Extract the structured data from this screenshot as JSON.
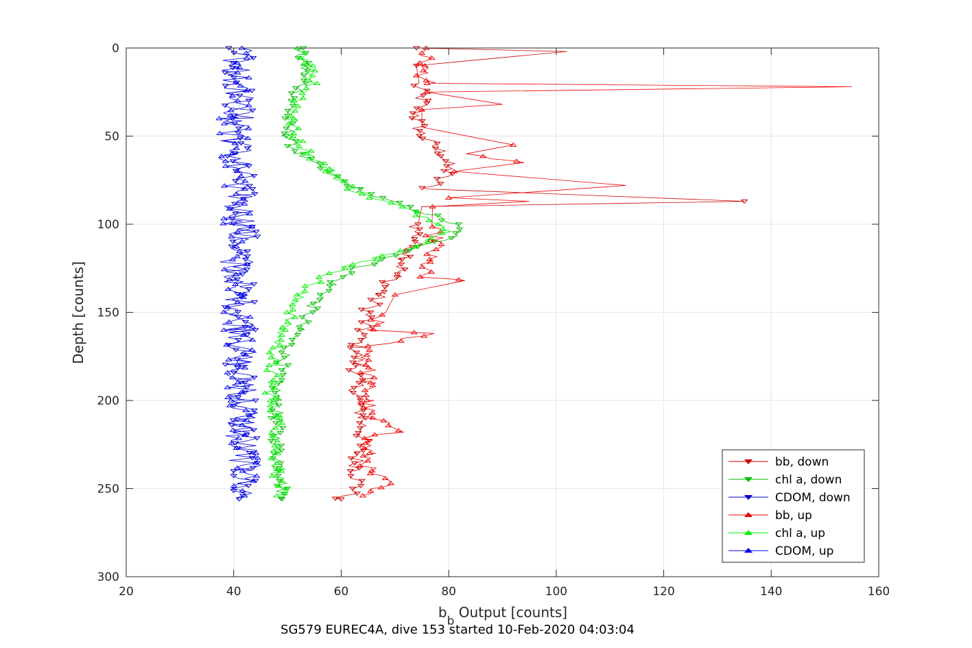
{
  "chart_data": {
    "type": "line",
    "title": "SG579 EUREC4A, dive 153 started 10-Feb-2020 04:03:04",
    "xlabel_main": "b",
    "xlabel_sub": "b",
    "xlabel_rest": " Output [counts]",
    "ylabel": "Depth [counts]",
    "xlim": [
      20,
      160
    ],
    "ylim": [
      0,
      300
    ],
    "y_reversed": true,
    "grid": true,
    "legend_position": "bottom-right",
    "xticks": [
      20,
      40,
      60,
      80,
      100,
      120,
      140,
      160
    ],
    "yticks": [
      0,
      50,
      100,
      150,
      200,
      250,
      300
    ],
    "xtick_labels": [
      "20",
      "40",
      "60",
      "80",
      "100",
      "120",
      "140",
      "160"
    ],
    "ytick_labels": [
      "0",
      "50",
      "100",
      "150",
      "200",
      "250",
      "300"
    ],
    "series": [
      {
        "name": "bb, down",
        "color": "#cc0000",
        "marker": "triangle-down",
        "profile": [
          [
            0,
            74
          ],
          [
            2,
            102
          ],
          [
            10,
            74
          ],
          [
            20,
            74
          ],
          [
            30,
            75
          ],
          [
            40,
            74
          ],
          [
            50,
            75
          ],
          [
            60,
            79
          ],
          [
            70,
            80
          ],
          [
            78,
            77
          ],
          [
            80,
            76
          ],
          [
            87,
            135
          ],
          [
            90,
            75
          ],
          [
            100,
            74
          ],
          [
            110,
            74
          ],
          [
            120,
            72
          ],
          [
            130,
            70
          ],
          [
            140,
            67
          ],
          [
            150,
            65
          ],
          [
            160,
            64
          ],
          [
            170,
            63
          ],
          [
            180,
            63
          ],
          [
            190,
            63
          ],
          [
            200,
            63
          ],
          [
            210,
            64
          ],
          [
            220,
            64
          ],
          [
            230,
            63
          ],
          [
            240,
            63
          ],
          [
            250,
            63
          ],
          [
            256,
            60
          ]
        ],
        "values_x": [
          74,
          102,
          74,
          74,
          75,
          74,
          75,
          79,
          80,
          77,
          76,
          135,
          75,
          74,
          74,
          72,
          70,
          67,
          65,
          64,
          63,
          63,
          63,
          63,
          64,
          64,
          63,
          63,
          63,
          60
        ],
        "values_y": [
          0,
          2,
          10,
          20,
          30,
          40,
          50,
          60,
          70,
          78,
          80,
          87,
          90,
          100,
          110,
          120,
          130,
          140,
          150,
          160,
          170,
          180,
          190,
          200,
          210,
          220,
          230,
          240,
          250,
          256
        ]
      },
      {
        "name": "chl a, down",
        "color": "#00bb00",
        "marker": "triangle-down",
        "profile": [
          [
            0,
            52
          ],
          [
            10,
            53
          ],
          [
            20,
            53
          ],
          [
            30,
            51
          ],
          [
            40,
            50
          ],
          [
            50,
            50
          ],
          [
            60,
            52
          ],
          [
            70,
            57
          ],
          [
            80,
            63
          ],
          [
            85,
            67
          ],
          [
            90,
            72
          ],
          [
            95,
            77
          ],
          [
            100,
            81
          ],
          [
            105,
            82
          ],
          [
            110,
            78
          ],
          [
            115,
            73
          ],
          [
            120,
            68
          ],
          [
            125,
            63
          ],
          [
            130,
            60
          ],
          [
            135,
            58
          ],
          [
            140,
            57
          ],
          [
            145,
            55
          ],
          [
            150,
            54
          ],
          [
            160,
            52
          ],
          [
            170,
            50
          ],
          [
            180,
            49
          ],
          [
            190,
            48
          ],
          [
            200,
            48
          ],
          [
            210,
            48
          ],
          [
            220,
            48
          ],
          [
            230,
            48
          ],
          [
            240,
            49
          ],
          [
            250,
            49
          ],
          [
            256,
            49
          ]
        ],
        "values_x": [
          52,
          53,
          53,
          51,
          50,
          50,
          52,
          57,
          63,
          67,
          72,
          77,
          81,
          82,
          78,
          73,
          68,
          63,
          60,
          58,
          57,
          55,
          54,
          52,
          50,
          49,
          48,
          48,
          48,
          48,
          48,
          49,
          49,
          49
        ],
        "values_y": [
          0,
          10,
          20,
          30,
          40,
          50,
          60,
          70,
          80,
          85,
          90,
          95,
          100,
          105,
          110,
          115,
          120,
          125,
          130,
          135,
          140,
          145,
          150,
          160,
          170,
          180,
          190,
          200,
          210,
          220,
          230,
          240,
          250,
          256
        ]
      },
      {
        "name": "CDOM, down",
        "color": "#0000cc",
        "marker": "triangle-down",
        "profile": [
          [
            0,
            42
          ],
          [
            20,
            41
          ],
          [
            40,
            41
          ],
          [
            60,
            41
          ],
          [
            80,
            41
          ],
          [
            100,
            42
          ],
          [
            120,
            41
          ],
          [
            140,
            41
          ],
          [
            160,
            42
          ],
          [
            180,
            41
          ],
          [
            200,
            42
          ],
          [
            220,
            42
          ],
          [
            240,
            42
          ],
          [
            256,
            41
          ]
        ],
        "values_x": [
          42,
          41,
          41,
          41,
          41,
          42,
          41,
          41,
          42,
          41,
          42,
          42,
          42,
          41
        ],
        "values_y": [
          0,
          20,
          40,
          60,
          80,
          100,
          120,
          140,
          160,
          180,
          200,
          220,
          240,
          256
        ]
      },
      {
        "name": "bb, up",
        "color": "#ee0000",
        "marker": "triangle-up",
        "profile": [
          [
            0,
            76
          ],
          [
            10,
            75
          ],
          [
            20,
            76
          ],
          [
            22,
            155
          ],
          [
            25,
            76
          ],
          [
            32,
            90
          ],
          [
            35,
            75
          ],
          [
            45,
            75
          ],
          [
            55,
            92
          ],
          [
            60,
            82
          ],
          [
            65,
            94
          ],
          [
            70,
            81
          ],
          [
            78,
            113
          ],
          [
            85,
            80
          ],
          [
            87,
            95
          ],
          [
            90,
            77
          ],
          [
            100,
            77
          ],
          [
            105,
            77
          ],
          [
            110,
            78
          ],
          [
            120,
            76
          ],
          [
            130,
            75
          ],
          [
            132,
            83
          ],
          [
            140,
            70
          ],
          [
            150,
            67
          ],
          [
            160,
            66
          ],
          [
            162,
            76
          ],
          [
            170,
            65
          ],
          [
            180,
            65
          ],
          [
            190,
            65
          ],
          [
            200,
            65
          ],
          [
            210,
            65
          ],
          [
            218,
            73
          ],
          [
            220,
            65
          ],
          [
            230,
            65
          ],
          [
            240,
            65
          ],
          [
            248,
            69
          ],
          [
            250,
            65
          ],
          [
            254,
            64
          ]
        ],
        "values_x": [
          76,
          75,
          76,
          155,
          76,
          90,
          75,
          75,
          92,
          82,
          94,
          81,
          113,
          80,
          95,
          77,
          77,
          77,
          78,
          76,
          75,
          83,
          70,
          67,
          66,
          76,
          65,
          65,
          65,
          65,
          65,
          73,
          65,
          65,
          65,
          69,
          65,
          64
        ],
        "values_y": [
          0,
          10,
          20,
          22,
          25,
          32,
          35,
          45,
          55,
          60,
          65,
          70,
          78,
          85,
          87,
          90,
          100,
          105,
          110,
          120,
          130,
          132,
          140,
          150,
          160,
          162,
          170,
          180,
          190,
          200,
          210,
          218,
          220,
          230,
          240,
          248,
          250,
          254
        ]
      },
      {
        "name": "chl a, up",
        "color": "#00ee00",
        "marker": "triangle-up",
        "profile": [
          [
            0,
            53
          ],
          [
            10,
            54
          ],
          [
            20,
            55
          ],
          [
            30,
            52
          ],
          [
            40,
            51
          ],
          [
            50,
            51
          ],
          [
            60,
            54
          ],
          [
            70,
            58
          ],
          [
            80,
            62
          ],
          [
            85,
            66
          ],
          [
            90,
            71
          ],
          [
            95,
            75
          ],
          [
            100,
            79
          ],
          [
            105,
            80
          ],
          [
            110,
            76
          ],
          [
            115,
            71
          ],
          [
            120,
            66
          ],
          [
            125,
            60
          ],
          [
            130,
            57
          ],
          [
            135,
            54
          ],
          [
            140,
            52
          ],
          [
            150,
            51
          ],
          [
            160,
            49
          ],
          [
            170,
            48
          ],
          [
            180,
            47
          ],
          [
            190,
            47
          ],
          [
            200,
            47
          ],
          [
            210,
            48
          ],
          [
            220,
            48
          ],
          [
            230,
            48
          ],
          [
            240,
            48
          ],
          [
            250,
            49
          ],
          [
            254,
            48
          ]
        ],
        "values_x": [
          53,
          54,
          55,
          52,
          51,
          51,
          54,
          58,
          62,
          66,
          71,
          75,
          79,
          80,
          76,
          71,
          66,
          60,
          57,
          54,
          52,
          51,
          49,
          48,
          47,
          47,
          47,
          48,
          48,
          48,
          48,
          49,
          48
        ],
        "values_y": [
          0,
          10,
          20,
          30,
          40,
          50,
          60,
          70,
          80,
          85,
          90,
          95,
          100,
          105,
          110,
          115,
          120,
          125,
          130,
          135,
          140,
          150,
          160,
          170,
          180,
          190,
          200,
          210,
          220,
          230,
          240,
          250,
          254
        ]
      },
      {
        "name": "CDOM, up",
        "color": "#0000ee",
        "marker": "triangle-up",
        "profile": [
          [
            0,
            41
          ],
          [
            20,
            40
          ],
          [
            40,
            40
          ],
          [
            60,
            40
          ],
          [
            80,
            41
          ],
          [
            100,
            41
          ],
          [
            120,
            40
          ],
          [
            140,
            40
          ],
          [
            160,
            41
          ],
          [
            180,
            41
          ],
          [
            200,
            42
          ],
          [
            220,
            41
          ],
          [
            240,
            42
          ],
          [
            254,
            42
          ]
        ],
        "values_x": [
          41,
          40,
          40,
          40,
          41,
          41,
          40,
          40,
          41,
          41,
          42,
          41,
          42,
          42
        ],
        "values_y": [
          0,
          20,
          40,
          60,
          80,
          100,
          120,
          140,
          160,
          180,
          200,
          220,
          240,
          254
        ]
      }
    ]
  }
}
